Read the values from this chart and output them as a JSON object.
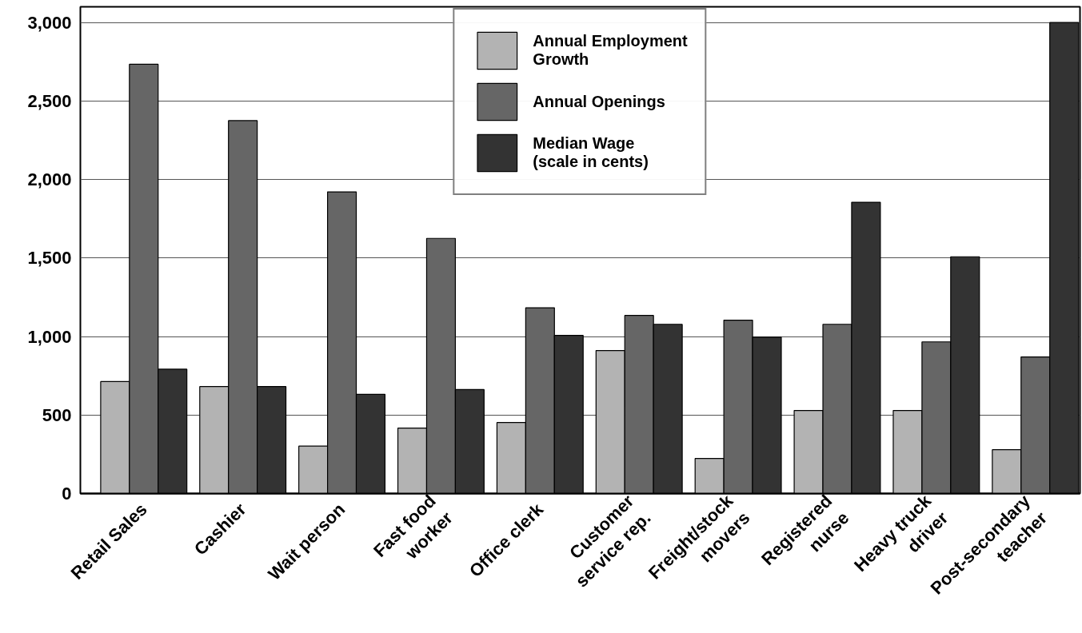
{
  "chart_data": {
    "type": "bar",
    "categories": [
      "Retail Sales",
      "Cashier",
      "Wait person",
      "Fast food worker",
      "Office clerk",
      "Customer service rep.",
      "Freight/stock movers",
      "Registered nurse",
      "Heavy truck driver",
      "Post-secondary teacher"
    ],
    "series": [
      {
        "name": "Annual Employment Growth",
        "color": "#b3b3b3",
        "values": [
          713,
          681,
          302,
          417,
          452,
          911,
          223,
          529,
          529,
          279
        ]
      },
      {
        "name": "Annual Openings",
        "color": "#666666",
        "values": [
          2734,
          2375,
          1921,
          1625,
          1183,
          1134,
          1104,
          1078,
          966,
          870
        ]
      },
      {
        "name": "Median Wage (scale in cents)",
        "color": "#333333",
        "values": [
          792,
          681,
          632,
          662,
          1007,
          1078,
          996,
          1855,
          1508,
          3000
        ]
      }
    ],
    "ylim": [
      0,
      3100
    ],
    "yticks": [
      {
        "value": 0,
        "label": "0"
      },
      {
        "value": 500,
        "label": "500"
      },
      {
        "value": 1000,
        "label": "1,000"
      },
      {
        "value": 1500,
        "label": "1,500"
      },
      {
        "value": 2000,
        "label": "2,000"
      },
      {
        "value": 2500,
        "label": "2,500"
      },
      {
        "value": 3000,
        "label": "3,000"
      }
    ],
    "grid": "y",
    "legend": "top"
  }
}
